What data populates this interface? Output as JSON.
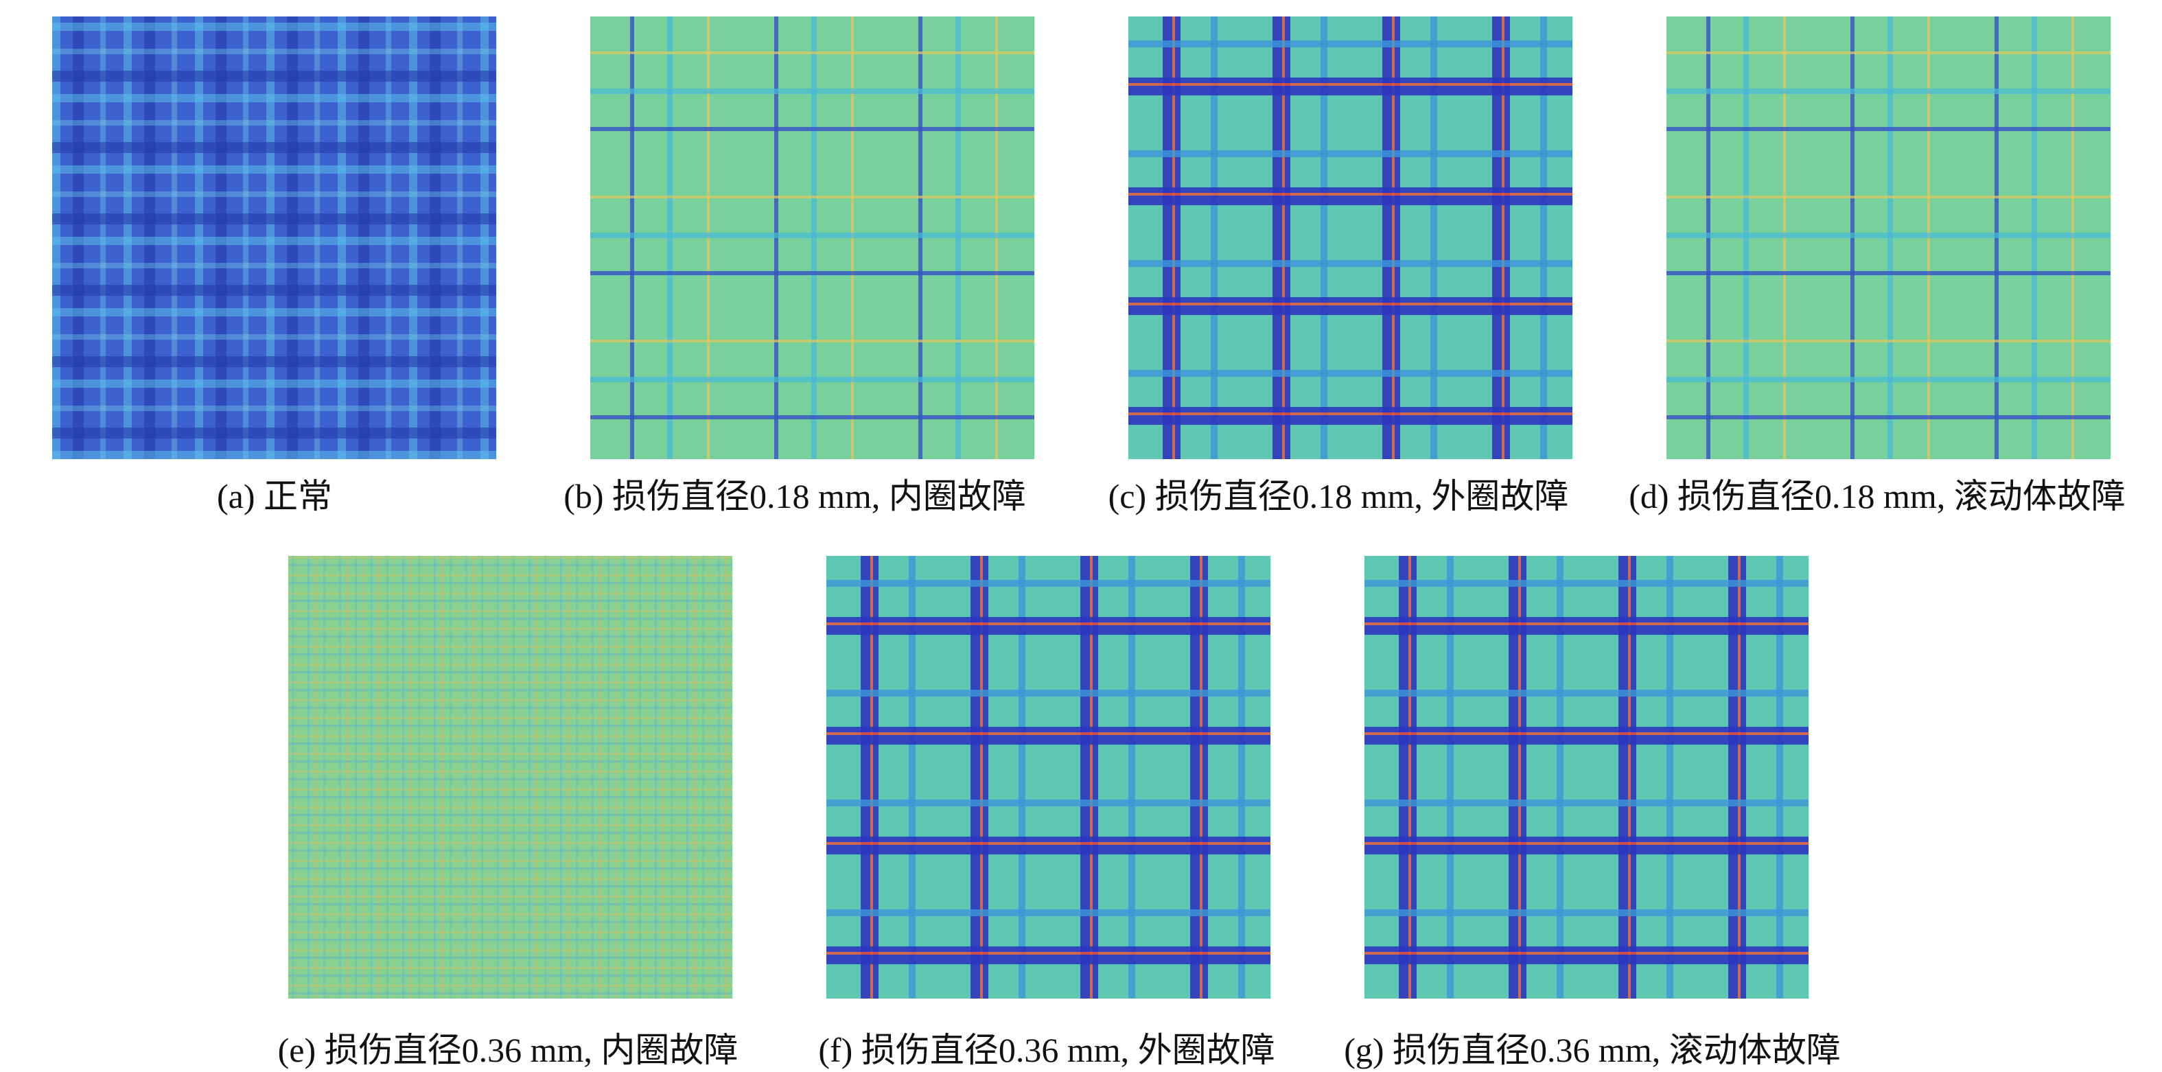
{
  "figure": {
    "panels": [
      {
        "caption": "(a) 正常"
      },
      {
        "caption": "(b) 损伤直径0.18 mm, 内圈故障"
      },
      {
        "caption": "(c) 损伤直径0.18 mm, 外圈故障"
      },
      {
        "caption": "(d) 损伤直径0.18 mm, 滚动体故障"
      },
      {
        "caption": "(e) 损伤直径0.36 mm, 内圈故障"
      },
      {
        "caption": "(f) 损伤直径0.36 mm, 外圈故障"
      },
      {
        "caption": "(g) 损伤直径0.36 mm, 滚动体故障"
      }
    ]
  }
}
